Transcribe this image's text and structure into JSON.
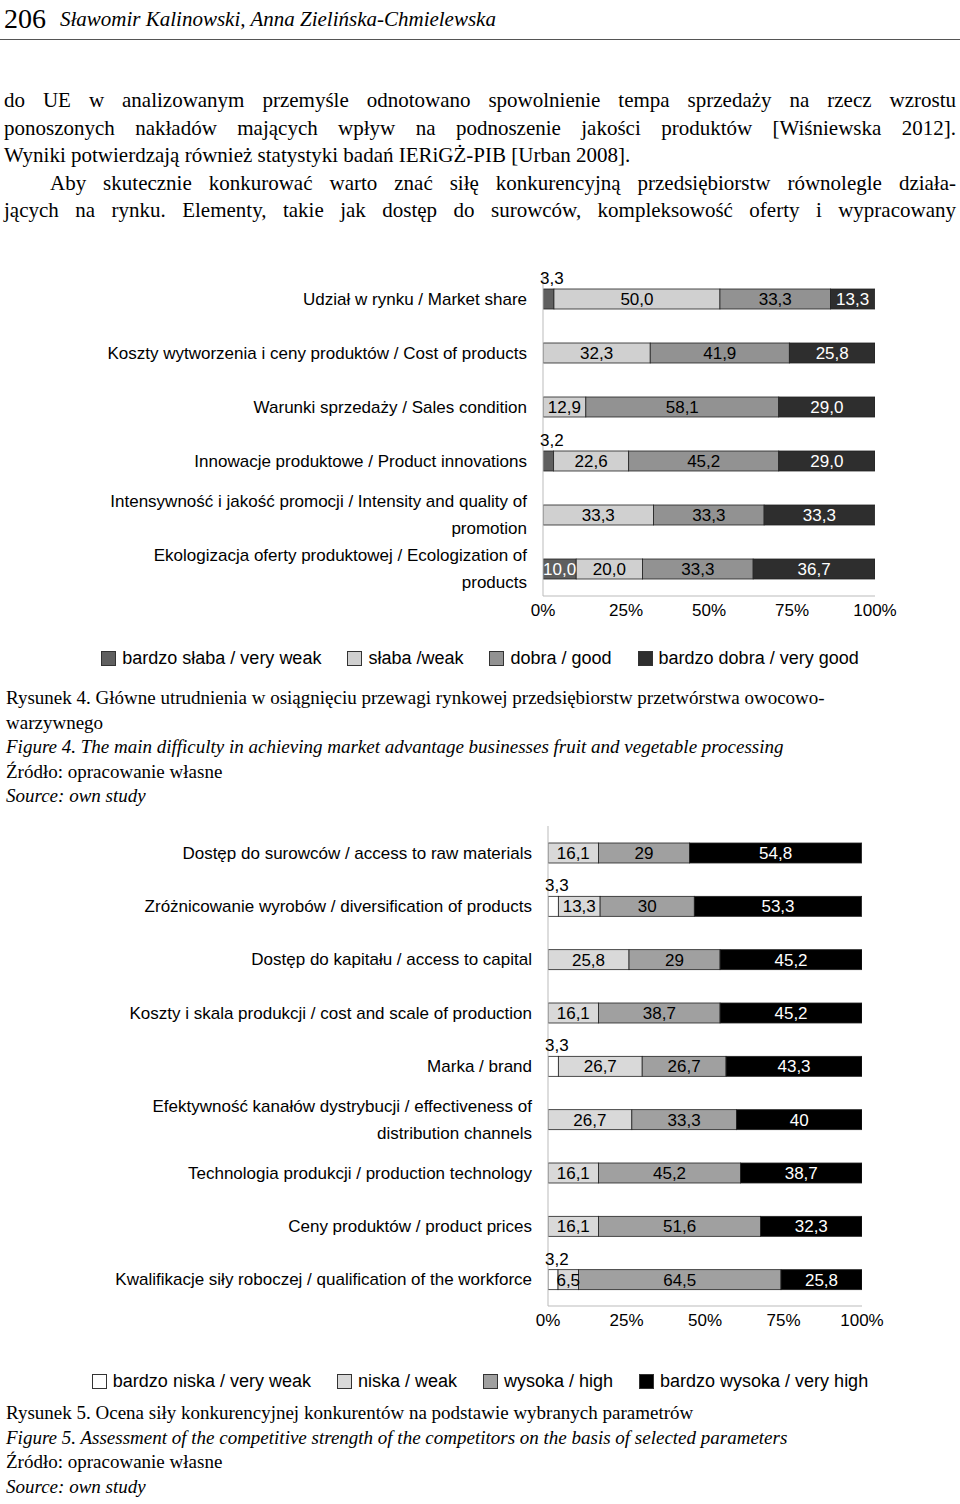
{
  "header": {
    "page_number": "206",
    "authors": "Sławomir Kalinowski, Anna Zielińska-Chmielewska"
  },
  "body_text": [
    [
      "do UE w analizowanym przemyśle odnotowano spowolnienie tempa sprzedaży na rzecz wzrostu",
      "ponoszonych nakładów mających wpływ na podnoszenie jakości produktów [Wiśniewska 2012].",
      "Wyniki potwierdzają również statystyki badań IERiGŻ-PIB [Urban 2008]."
    ],
    [
      "Aby skutecznie konkurować warto znać siłę konkurencyjną przedsiębiorstw równolegle działa-",
      "jących na rynku. Elementy, takie jak dostęp do surowców, kompleksowość oferty i wypracowany"
    ]
  ],
  "chart_data": [
    {
      "type": "bar",
      "orientation": "horizontal",
      "stacked": true,
      "data_labels": true,
      "legend": "bottom",
      "grid": false,
      "categories": [
        "Udział w rynku / Market share",
        "Koszty wytworzenia i ceny produktów / Cost of products",
        "Warunki sprzedaży / Sales condition",
        "Innowacje produktowe / Product innovations",
        "Intensywność i jakość promocji / Intensity and quality of promotion",
        "Ekologizacja oferty produktowej / Ecologization of products"
      ],
      "series": [
        {
          "name": "bardzo słaba / very weak",
          "color": "#5f5f5f",
          "values": [
            3.3,
            null,
            null,
            3.2,
            null,
            10.0
          ],
          "value_labels": [
            "3,3",
            null,
            null,
            "3,2",
            null,
            "10,0"
          ]
        },
        {
          "name": "słaba /weak",
          "color": "#d0d0d0",
          "values": [
            50.0,
            32.3,
            12.9,
            22.6,
            33.3,
            20.0
          ],
          "value_labels": [
            "50,0",
            "32,3",
            "12,9",
            "22,6",
            "33,3",
            "20,0"
          ]
        },
        {
          "name": "dobra / good",
          "color": "#929292",
          "values": [
            33.3,
            41.9,
            58.1,
            45.2,
            33.3,
            33.3
          ],
          "value_labels": [
            "33,3",
            "41,9",
            "58,1",
            "45,2",
            "33,3",
            "33,3"
          ]
        },
        {
          "name": "bardzo dobra / very good",
          "color": "#2e2e2e",
          "values": [
            13.3,
            25.8,
            29.0,
            29.0,
            33.3,
            36.7
          ],
          "value_labels": [
            "13,3",
            "25,8",
            "29,0",
            "29,0",
            "33,3",
            "36,7"
          ]
        }
      ],
      "xlim": [
        0,
        100
      ],
      "xticks": [
        {
          "value": 0,
          "label": "0%"
        },
        {
          "value": 25,
          "label": "25%"
        },
        {
          "value": 50,
          "label": "50%"
        },
        {
          "value": 75,
          "label": "75%"
        },
        {
          "value": 100,
          "label": "100%"
        }
      ]
    },
    {
      "type": "bar",
      "orientation": "horizontal",
      "stacked": true,
      "data_labels": true,
      "legend": "bottom",
      "grid": false,
      "categories": [
        "Dostęp do surowców / access to raw materials",
        "Zróżnicowanie wyrobów / diversification of products",
        "Dostęp do kapitału / access to capital",
        "Koszty i skala produkcji / cost and scale of production",
        "Marka / brand",
        "Efektywność kanałów dystrybucji / effectiveness of distribution channels",
        "Technologia produkcji / production technology",
        "Ceny produktów / product prices",
        "Kwalifikacje siły roboczej / qualification of the workforce"
      ],
      "series": [
        {
          "name": "bardzo niska / very weak",
          "color": "#ffffff",
          "values": [
            null,
            3.3,
            null,
            null,
            3.3,
            null,
            null,
            null,
            3.2
          ],
          "value_labels": [
            null,
            "3,3",
            null,
            null,
            "3,3",
            null,
            null,
            null,
            "3,2"
          ]
        },
        {
          "name": "niska / weak",
          "color": "#d9d9d9",
          "values": [
            16.1,
            13.3,
            25.8,
            16.1,
            26.7,
            26.7,
            16.1,
            16.1,
            6.5
          ],
          "value_labels": [
            "16,1",
            "13,3",
            "25,8",
            "16,1",
            "26,7",
            "26,7",
            "16,1",
            "16,1",
            "6,5"
          ]
        },
        {
          "name": "wysoka / high",
          "color": "#a0a0a0",
          "values": [
            29,
            30,
            29,
            38.7,
            26.7,
            33.3,
            45.2,
            51.6,
            64.5
          ],
          "value_labels": [
            "29",
            "30",
            "29",
            "38,7",
            "26,7",
            "33,3",
            "45,2",
            "51,6",
            "64,5"
          ]
        },
        {
          "name": "bardzo wysoka / very high",
          "color": "#000000",
          "values": [
            54.8,
            53.3,
            45.2,
            45.2,
            43.3,
            40,
            38.7,
            32.3,
            25.8
          ],
          "value_labels": [
            "54,8",
            "53,3",
            "45,2",
            "45,2",
            "43,3",
            "40",
            "38,7",
            "32,3",
            "25,8"
          ]
        }
      ],
      "xlim": [
        0,
        100
      ],
      "xticks": [
        {
          "value": 0,
          "label": "0%"
        },
        {
          "value": 25,
          "label": "25%"
        },
        {
          "value": 50,
          "label": "50%"
        },
        {
          "value": 75,
          "label": "75%"
        },
        {
          "value": 100,
          "label": "100%"
        }
      ]
    }
  ],
  "figures": [
    {
      "caption_pl": [
        "Rysunek 4. Główne utrudnienia w osiągnięciu przewagi rynkowej przedsiębiorstw przetwórstwa owocowo-",
        "warzywnego"
      ],
      "caption_en": "Figure 4. The main difficulty in achieving market advantage businesses fruit and vegetable processing",
      "source_pl": "Źródło: opracowanie własne",
      "source_en": "Source: own study"
    },
    {
      "caption_pl": [
        "Rysunek 5. Ocena siły konkurencyjnej konkurentów na podstawie wybranych parametrów"
      ],
      "caption_en": "Figure 5. Assessment of the competitive strength of the competitors on the basis of selected parameters",
      "source_pl": "Źródło: opracowanie własne",
      "source_en": "Source: own study"
    }
  ]
}
